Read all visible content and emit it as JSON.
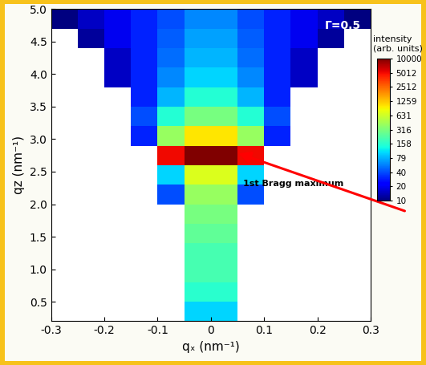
{
  "chart_data": {
    "type": "heatmap",
    "xlabel": "qₓ (nm⁻¹)",
    "ylabel": "qz (nm⁻¹)",
    "annotations": [
      "Γ=0.5",
      "1st Bragg maximum"
    ],
    "color": "jet",
    "x_edges": [
      -0.3,
      -0.25,
      -0.2,
      -0.15,
      -0.1,
      -0.05,
      0,
      0.05,
      0.1,
      0.15,
      0.2,
      0.25,
      0.3
    ],
    "y_edges": [
      0.2,
      0.5,
      0.8,
      1.1,
      1.4,
      1.7,
      2.0,
      2.3,
      2.6,
      2.9,
      3.2,
      3.5,
      3.8,
      4.1,
      4.4,
      4.7,
      5.0
    ],
    "cells": [
      [
        null,
        null,
        null,
        null,
        null,
        100,
        100,
        null,
        null,
        null,
        null,
        null
      ],
      [
        null,
        null,
        null,
        null,
        null,
        158,
        158,
        null,
        null,
        null,
        null,
        null
      ],
      [
        null,
        null,
        null,
        null,
        null,
        200,
        200,
        null,
        null,
        null,
        null,
        null
      ],
      [
        null,
        null,
        null,
        null,
        null,
        200,
        200,
        null,
        null,
        null,
        null,
        null
      ],
      [
        null,
        null,
        null,
        null,
        null,
        250,
        250,
        null,
        null,
        null,
        null,
        null
      ],
      [
        null,
        null,
        null,
        null,
        null,
        300,
        300,
        null,
        null,
        null,
        null,
        null
      ],
      [
        null,
        null,
        null,
        null,
        40,
        400,
        400,
        40,
        null,
        null,
        null,
        null
      ],
      [
        null,
        null,
        null,
        null,
        100,
        700,
        700,
        100,
        null,
        null,
        null,
        null
      ],
      [
        null,
        null,
        null,
        null,
        5000,
        10000,
        10000,
        5000,
        null,
        null,
        null,
        null
      ],
      [
        null,
        null,
        null,
        30,
        400,
        1000,
        1000,
        400,
        30,
        null,
        null,
        null
      ],
      [
        null,
        null,
        null,
        40,
        150,
        300,
        300,
        150,
        40,
        null,
        null,
        null
      ],
      [
        null,
        null,
        null,
        30,
        80,
        150,
        150,
        80,
        30,
        null,
        null,
        null
      ],
      [
        null,
        null,
        15,
        30,
        60,
        100,
        100,
        60,
        30,
        15,
        null,
        null
      ],
      [
        null,
        null,
        15,
        30,
        50,
        80,
        80,
        50,
        30,
        15,
        null,
        null
      ],
      [
        null,
        12,
        20,
        30,
        45,
        70,
        70,
        45,
        30,
        20,
        12,
        null
      ],
      [
        10,
        15,
        20,
        30,
        40,
        60,
        60,
        40,
        30,
        20,
        15,
        10
      ]
    ],
    "xlim": [
      -0.3,
      0.3
    ],
    "xticks": [
      -0.3,
      -0.2,
      -0.1,
      0,
      0.1,
      0.2,
      0.3
    ],
    "ylim": [
      0.2,
      5.0
    ],
    "yticks": [
      0.5,
      {
        "value": 1,
        "label": "1.0"
      },
      1.5,
      {
        "value": 2,
        "label": "2.0"
      },
      2.5,
      {
        "value": 3,
        "label": "3.0"
      },
      3.5,
      {
        "value": 4,
        "label": "4.0"
      },
      4.5,
      {
        "value": 5,
        "label": "5.0"
      }
    ],
    "colorbar": {
      "title": "intensity\n(arb. units)",
      "range": [
        10,
        10000
      ],
      "log": true,
      "ticks": [
        10,
        20,
        40,
        79,
        158,
        316,
        631,
        1259,
        2512,
        5012,
        10000
      ]
    }
  }
}
